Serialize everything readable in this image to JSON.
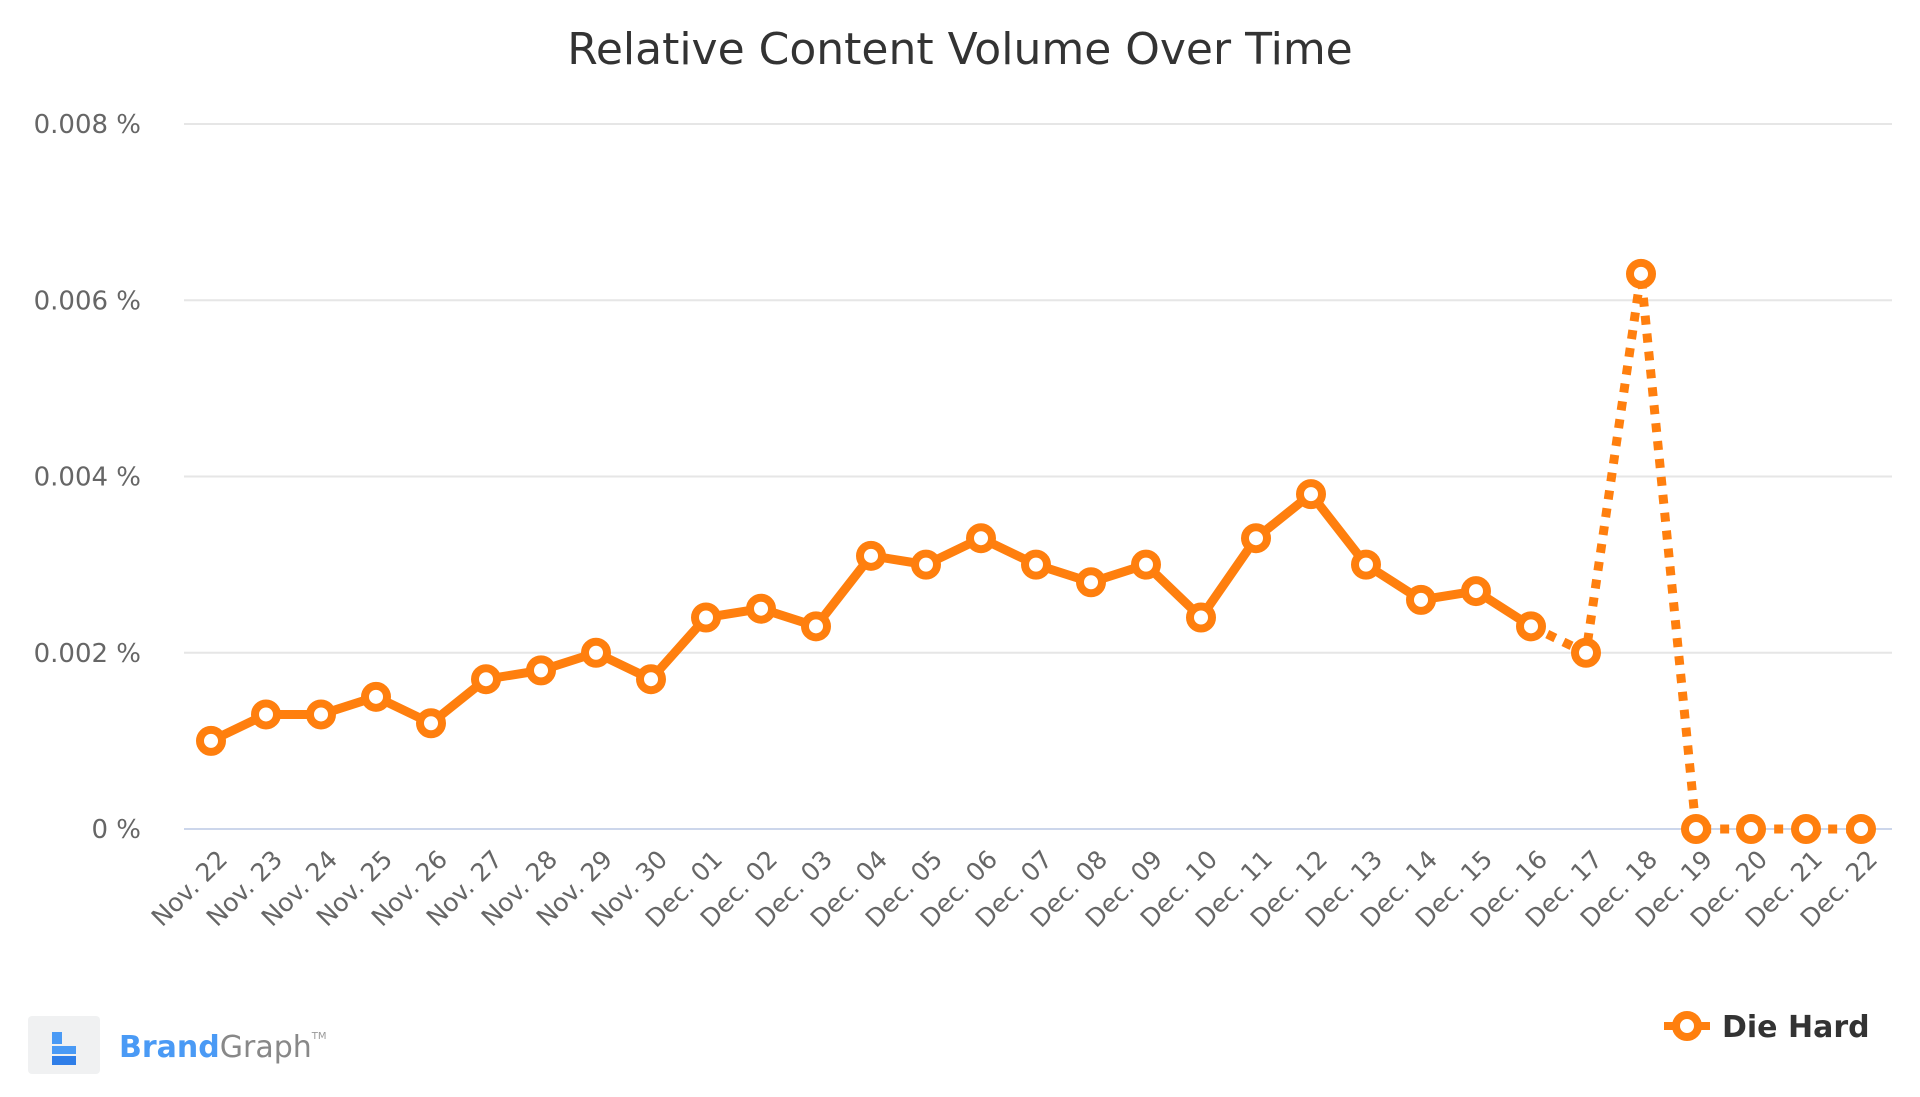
{
  "chart_data": {
    "type": "line",
    "title": "Relative Content Volume Over Time",
    "xlabel": "",
    "ylabel": "",
    "ylim": [
      0,
      0.008
    ],
    "yticks": [
      0,
      0.002,
      0.004,
      0.006,
      0.008
    ],
    "ytick_labels": [
      "0 %",
      "0.002 %",
      "0.004 %",
      "0.006 %",
      "0.008 %"
    ],
    "grid": true,
    "legend_placement": "bottom-right",
    "categories": [
      "Nov. 22",
      "Nov. 23",
      "Nov. 24",
      "Nov. 25",
      "Nov. 26",
      "Nov. 27",
      "Nov. 28",
      "Nov. 29",
      "Nov. 30",
      "Dec. 01",
      "Dec. 02",
      "Dec. 03",
      "Dec. 04",
      "Dec. 05",
      "Dec. 06",
      "Dec. 07",
      "Dec. 08",
      "Dec. 09",
      "Dec. 10",
      "Dec. 11",
      "Dec. 12",
      "Dec. 13",
      "Dec. 14",
      "Dec. 15",
      "Dec. 16",
      "Dec. 17",
      "Dec. 18",
      "Dec. 19",
      "Dec. 20",
      "Dec. 21",
      "Dec. 22"
    ],
    "series": [
      {
        "name": "Die Hard",
        "color": "#ff7f0e",
        "dashed_from": "Dec. 16",
        "values": [
          0.001,
          0.0013,
          0.0013,
          0.0015,
          0.0012,
          0.0017,
          0.0018,
          0.002,
          0.0017,
          0.0024,
          0.0025,
          0.0023,
          0.0031,
          0.003,
          0.0033,
          0.003,
          0.0028,
          0.003,
          0.0024,
          0.0033,
          0.0038,
          0.003,
          0.0026,
          0.0027,
          0.0023,
          0.002,
          0.0063,
          0,
          0,
          0,
          0
        ]
      }
    ]
  },
  "branding": {
    "brand": "Brand",
    "graph": "Graph",
    "tm": "TM"
  }
}
